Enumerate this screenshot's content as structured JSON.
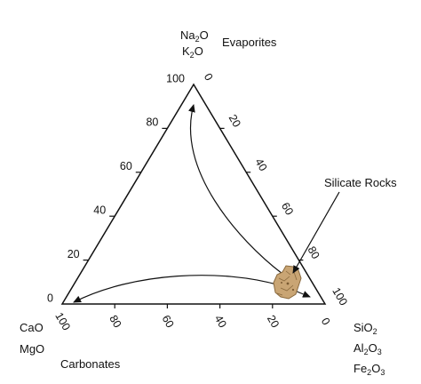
{
  "apex_top": {
    "formula_1": {
      "base": "Na",
      "sub": "2",
      "tail": "O"
    },
    "formula_2": {
      "base": "K",
      "sub": "2",
      "tail": "O"
    },
    "name": "Evaporites"
  },
  "apex_left": {
    "formula_1": "CaO",
    "formula_2": "MgO",
    "name": "Carbonates"
  },
  "apex_right": {
    "formula_1": {
      "base": "SiO",
      "sub": "2",
      "tail": ""
    },
    "formula_2": {
      "base": "Al",
      "sub": "2",
      "tail": "O",
      "sub2": "3"
    },
    "formula_3": {
      "base": "Fe",
      "sub": "2",
      "tail": "O",
      "sub2": "3"
    }
  },
  "callout": "Silicate Rocks",
  "ticks": {
    "left_edge": [
      "100",
      "80",
      "60",
      "40",
      "20",
      "0"
    ],
    "right_edge": [
      "0",
      "20",
      "40",
      "60",
      "80",
      "100"
    ],
    "bottom_edge": [
      "100",
      "80",
      "60",
      "40",
      "20",
      "0"
    ]
  },
  "colors": {
    "line": "#111111",
    "rock_fill": "#c9a574",
    "rock_dark": "#8a6a3e"
  }
}
